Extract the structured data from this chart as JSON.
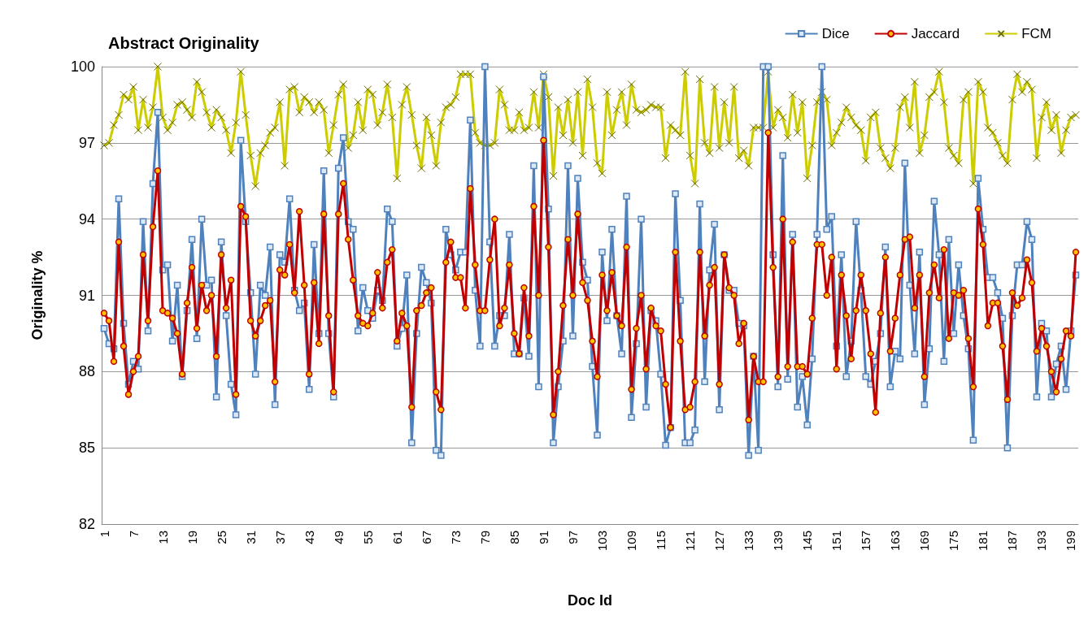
{
  "chart_data": {
    "type": "line",
    "title": "Abstract Originality",
    "xlabel": "Doc Id",
    "ylabel": "Originality %",
    "categories": [
      "1",
      null,
      null,
      null,
      null,
      null,
      "7",
      null,
      null,
      null,
      null,
      null,
      "13",
      null,
      null,
      null,
      null,
      null,
      "19",
      null,
      null,
      null,
      null,
      null,
      "25",
      null,
      null,
      null,
      null,
      null,
      "31",
      null,
      null,
      null,
      null,
      null,
      "37",
      null,
      null,
      null,
      null,
      null,
      "43",
      null,
      null,
      null,
      null,
      null,
      "49",
      null,
      null,
      null,
      null,
      null,
      "55",
      null,
      null,
      null,
      null,
      null,
      "61",
      null,
      null,
      null,
      null,
      null,
      "67",
      null,
      null,
      null,
      null,
      null,
      "73",
      null,
      null,
      null,
      null,
      null,
      "79",
      null,
      null,
      null,
      null,
      null,
      "85",
      null,
      null,
      null,
      null,
      null,
      "91",
      null,
      null,
      null,
      null,
      null,
      "97",
      null,
      null,
      null,
      null,
      null,
      "103",
      null,
      null,
      null,
      null,
      null,
      "109",
      null,
      null,
      null,
      null,
      null,
      "115",
      null,
      null,
      null,
      null,
      null,
      "121",
      null,
      null,
      null,
      null,
      null,
      "127",
      null,
      null,
      null,
      null,
      null,
      "133",
      null,
      null,
      null,
      null,
      null,
      "139",
      null,
      null,
      null,
      null,
      null,
      "145",
      null,
      null,
      null,
      null,
      null,
      "151",
      null,
      null,
      null,
      null,
      null,
      "157",
      null,
      null,
      null,
      null,
      null,
      "163",
      null,
      null,
      null,
      null,
      null,
      "169",
      null,
      null,
      null,
      null,
      null,
      "175",
      null,
      null,
      null,
      null,
      null,
      "181",
      null,
      null,
      null,
      null,
      null,
      "187",
      null,
      null,
      null,
      null,
      null,
      "193",
      null,
      null,
      null,
      null,
      null,
      "199",
      null
    ],
    "series": [
      {
        "name": "Dice",
        "color": "#4f81bd",
        "marker": "square",
        "values": [
          89.7,
          89.1,
          88.9,
          94.8,
          89.9,
          87.5,
          88.4,
          88.1,
          93.9,
          89.6,
          95.4,
          98.2,
          92.0,
          92.2,
          89.2,
          91.4,
          87.8,
          90.4,
          93.2,
          89.3,
          94.0,
          91.4,
          91.6,
          87.0,
          93.1,
          90.2,
          87.5,
          86.3,
          97.1,
          93.9,
          91.1,
          87.9,
          91.4,
          91.0,
          92.9,
          86.7,
          92.6,
          92.3,
          94.8,
          91.2,
          90.4,
          90.7,
          87.3,
          93.0,
          89.5,
          95.9,
          89.5,
          87.0,
          96.0,
          97.2,
          93.9,
          93.6,
          89.6,
          91.3,
          90.4,
          90.1,
          91.2,
          90.8,
          94.4,
          93.9,
          89.0,
          89.7,
          91.8,
          85.2,
          89.5,
          92.1,
          91.5,
          90.7,
          84.9,
          84.7,
          93.6,
          92.6,
          92.0,
          92.7,
          92.7,
          97.9,
          91.2,
          89.0,
          100,
          93.1,
          89.0,
          90.2,
          90.2,
          93.4,
          88.7,
          88.7,
          90.9,
          88.6,
          96.1,
          87.4,
          99.6,
          94.4,
          85.2,
          87.4,
          89.2,
          96.1,
          89.4,
          95.6,
          92.3,
          91.6,
          88.2,
          85.5,
          92.7,
          90.0,
          93.6,
          90.2,
          88.7,
          94.9,
          86.2,
          89.1,
          94.0,
          86.6,
          90.4,
          90.0,
          87.9,
          85.1,
          85.8,
          95.0,
          90.8,
          85.2,
          85.2,
          85.7,
          94.6,
          87.6,
          92.0,
          93.8,
          86.5,
          92.6,
          91.2,
          91.2,
          89.9,
          89.8,
          84.7,
          88.6,
          84.9,
          100,
          100,
          92.6,
          87.4,
          96.5,
          87.7,
          93.4,
          86.6,
          87.8,
          85.9,
          88.5,
          93.4,
          100,
          93.6,
          94.1,
          89.0,
          92.6,
          87.8,
          89.2,
          93.9,
          91.2,
          87.8,
          87.5,
          88.4,
          89.5,
          92.9,
          87.4,
          88.8,
          88.5,
          96.2,
          91.4,
          88.7,
          92.7,
          86.7,
          88.9,
          94.7,
          92.6,
          88.4,
          93.2,
          89.5,
          92.2,
          90.2,
          88.9,
          85.3,
          95.6,
          93.6,
          91.7,
          91.7,
          91.1,
          90.1,
          85.0,
          90.2,
          92.2,
          92.2,
          93.9,
          93.2,
          87.0,
          89.9,
          89.6,
          87.0,
          88.3,
          89.0,
          87.3,
          89.6,
          91.8
        ]
      },
      {
        "name": "Jaccard",
        "color": "#c00000",
        "marker": "circle",
        "values": [
          90.3,
          90.0,
          88.4,
          93.1,
          89.0,
          87.1,
          88.0,
          88.6,
          92.6,
          90.0,
          93.7,
          95.9,
          90.4,
          90.3,
          90.1,
          89.5,
          87.9,
          90.7,
          92.1,
          89.7,
          91.4,
          90.4,
          91.0,
          88.6,
          92.6,
          90.5,
          91.6,
          87.1,
          94.5,
          94.1,
          90.0,
          89.4,
          90.0,
          90.6,
          90.8,
          87.6,
          92.0,
          91.8,
          93.0,
          91.1,
          94.3,
          91.4,
          87.9,
          91.5,
          89.1,
          94.2,
          90.2,
          87.2,
          94.2,
          95.4,
          93.2,
          91.6,
          90.2,
          89.9,
          89.8,
          90.3,
          91.9,
          90.5,
          92.3,
          92.8,
          89.2,
          90.3,
          89.8,
          86.6,
          90.4,
          90.6,
          91.1,
          91.3,
          87.2,
          86.5,
          92.3,
          93.1,
          91.7,
          91.7,
          90.5,
          95.2,
          92.2,
          90.4,
          90.4,
          92.4,
          94.0,
          89.8,
          90.5,
          92.2,
          89.5,
          88.7,
          91.3,
          89.4,
          94.5,
          91.0,
          97.1,
          92.9,
          86.3,
          88.0,
          90.6,
          93.2,
          91.0,
          94.2,
          91.5,
          90.8,
          89.2,
          87.8,
          91.8,
          90.4,
          91.9,
          90.2,
          89.8,
          92.9,
          87.3,
          89.7,
          91.0,
          88.1,
          90.5,
          89.8,
          89.6,
          87.5,
          85.8,
          92.7,
          89.2,
          86.5,
          86.6,
          87.6,
          92.7,
          89.4,
          91.4,
          92.1,
          87.5,
          92.6,
          91.3,
          91.0,
          89.1,
          89.9,
          86.1,
          88.6,
          87.6,
          87.6,
          97.4,
          92.1,
          87.8,
          94.0,
          88.2,
          93.1,
          88.2,
          88.2,
          87.9,
          90.1,
          93.0,
          93.0,
          91.0,
          92.5,
          88.1,
          91.8,
          90.2,
          88.5,
          90.4,
          91.8,
          90.4,
          88.7,
          86.4,
          90.3,
          92.5,
          88.8,
          90.1,
          91.8,
          93.2,
          93.3,
          90.5,
          91.8,
          87.8,
          91.1,
          92.2,
          90.9,
          92.8,
          89.3,
          91.1,
          91.0,
          91.2,
          89.3,
          87.4,
          94.4,
          93.0,
          89.8,
          90.7,
          90.7,
          89.0,
          86.9,
          91.1,
          90.6,
          90.9,
          92.4,
          91.5,
          88.8,
          89.7,
          89.0,
          88.0,
          87.2,
          88.5,
          89.6,
          89.4,
          92.7
        ]
      },
      {
        "name": "FCM",
        "color": "#cccc00",
        "marker": "cross",
        "values": [
          96.9,
          97.0,
          97.7,
          98.1,
          98.9,
          98.7,
          99.2,
          97.5,
          98.7,
          97.6,
          98.4,
          100,
          98.0,
          97.5,
          97.8,
          98.5,
          98.6,
          98.3,
          98.0,
          99.4,
          99.0,
          98.2,
          97.6,
          98.3,
          98.0,
          97.5,
          96.6,
          97.8,
          99.8,
          98.1,
          96.5,
          95.3,
          96.6,
          96.9,
          97.4,
          97.6,
          98.6,
          96.1,
          99.1,
          99.2,
          98.2,
          98.8,
          98.6,
          98.2,
          98.6,
          98.3,
          96.6,
          97.7,
          98.9,
          99.3,
          96.8,
          97.3,
          98.6,
          97.5,
          99.1,
          98.9,
          97.7,
          98.2,
          99.3,
          98.0,
          95.6,
          98.5,
          99.2,
          98.1,
          96.9,
          96.0,
          98.0,
          97.3,
          96.1,
          97.8,
          98.4,
          98.5,
          98.8,
          99.7,
          99.7,
          99.7,
          97.4,
          97.0,
          96.9,
          96.9,
          97.0,
          99.1,
          98.5,
          97.5,
          97.5,
          98.2,
          97.5,
          97.6,
          99.0,
          97.6,
          99.7,
          98.8,
          95.7,
          98.4,
          97.3,
          98.7,
          97.0,
          99.0,
          96.5,
          99.5,
          98.4,
          96.2,
          95.8,
          99.0,
          97.3,
          98.3,
          99.0,
          97.7,
          99.3,
          98.3,
          98.2,
          98.3,
          98.5,
          98.4,
          98.4,
          96.4,
          97.7,
          97.5,
          97.3,
          99.8,
          96.5,
          95.4,
          99.5,
          97.0,
          96.6,
          99.2,
          96.8,
          98.6,
          97.0,
          99.2,
          96.4,
          96.7,
          96.1,
          97.6,
          97.6,
          97.6,
          99.8,
          97.6,
          98.3,
          98.0,
          97.2,
          98.9,
          97.4,
          98.6,
          95.6,
          96.9,
          98.6,
          99.0,
          98.7,
          96.9,
          97.4,
          97.8,
          98.4,
          98.0,
          97.7,
          97.5,
          96.3,
          98.0,
          98.2,
          96.8,
          96.4,
          96.0,
          96.8,
          98.4,
          98.8,
          97.6,
          99.4,
          96.6,
          97.3,
          98.8,
          99.0,
          99.8,
          98.6,
          96.8,
          96.5,
          96.2,
          98.7,
          99.0,
          95.4,
          99.4,
          99.0,
          97.6,
          97.4,
          97.0,
          96.5,
          96.2,
          98.7,
          99.7,
          99.0,
          99.4,
          99.1,
          96.4,
          98.0,
          98.6,
          97.5,
          98.1,
          96.6,
          97.5,
          98.0,
          98.1
        ]
      }
    ],
    "ylim": [
      82,
      100
    ],
    "yticks": [
      82,
      85,
      88,
      91,
      94,
      97,
      100
    ],
    "grid": "y",
    "legend": "top right"
  }
}
